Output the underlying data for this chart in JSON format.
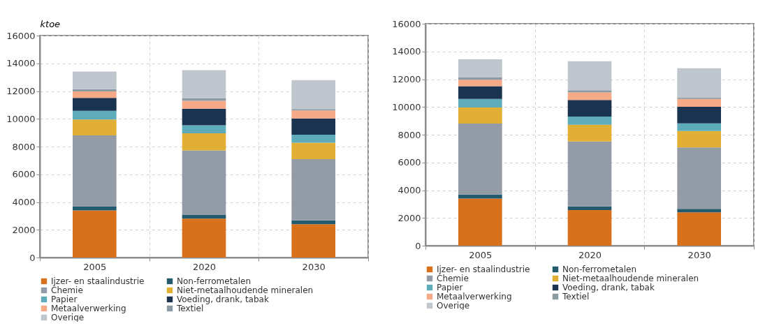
{
  "chart_data": [
    {
      "type": "bar",
      "stacked": true,
      "ylabel": "ktoe",
      "categories": [
        "2005",
        "2020",
        "2030"
      ],
      "ylim": [
        0,
        16000
      ],
      "yticks": [
        0,
        2000,
        4000,
        6000,
        8000,
        10000,
        12000,
        14000,
        16000
      ],
      "grid": true,
      "legend": "bottom",
      "series": [
        {
          "name": "Ijzer- en staalindustrie",
          "color": "#d9711c",
          "values": [
            3400,
            2800,
            2400
          ]
        },
        {
          "name": "Non-ferrometalen",
          "color": "#245a6e",
          "values": [
            300,
            290,
            280
          ]
        },
        {
          "name": "Chemie",
          "color": "#939ca6",
          "values": [
            5100,
            4630,
            4420
          ]
        },
        {
          "name": "Niet-metaalhoudende mineralen",
          "color": "#e1af34",
          "values": [
            1150,
            1230,
            1180
          ]
        },
        {
          "name": "Papier",
          "color": "#5eabb9",
          "values": [
            630,
            580,
            570
          ]
        },
        {
          "name": "Voeding, drank, tabak",
          "color": "#1a3350",
          "values": [
            930,
            1200,
            1170
          ]
        },
        {
          "name": "Metaalverwerking",
          "color": "#f5a986",
          "values": [
            460,
            570,
            580
          ]
        },
        {
          "name": "Textiel",
          "color": "#8b9ba3",
          "values": [
            170,
            170,
            100
          ]
        },
        {
          "name": "Overige",
          "color": "#bfc6ce",
          "values": [
            1270,
            2040,
            2090
          ]
        }
      ]
    },
    {
      "type": "bar",
      "stacked": true,
      "categories": [
        "2005",
        "2020",
        "2030"
      ],
      "ylim": [
        0,
        16000
      ],
      "yticks": [
        0,
        2000,
        4000,
        6000,
        8000,
        10000,
        12000,
        14000,
        16000
      ],
      "grid": true,
      "legend": "bottom",
      "series": [
        {
          "name": "Ijzer- en staalindustrie",
          "color": "#d9711c",
          "values": [
            3400,
            2570,
            2400
          ]
        },
        {
          "name": "Non-ferrometalen",
          "color": "#245a6e",
          "values": [
            280,
            260,
            260
          ]
        },
        {
          "name": "Chemie",
          "color": "#939ca6",
          "values": [
            5120,
            4680,
            4420
          ]
        },
        {
          "name": "Niet-metaalhoudende mineralen",
          "color": "#e1af34",
          "values": [
            1160,
            1210,
            1180
          ]
        },
        {
          "name": "Papier",
          "color": "#5eabb9",
          "values": [
            620,
            590,
            560
          ]
        },
        {
          "name": "Voeding, drank, tabak",
          "color": "#1a3350",
          "values": [
            920,
            1190,
            1190
          ]
        },
        {
          "name": "Metaalverwerking",
          "color": "#f5a986",
          "values": [
            460,
            560,
            570
          ]
        },
        {
          "name": "Textiel",
          "color": "#8b9ba3",
          "values": [
            190,
            150,
            110
          ]
        },
        {
          "name": "Overige",
          "color": "#bfc6ce",
          "values": [
            1280,
            2080,
            2100
          ]
        }
      ]
    }
  ]
}
